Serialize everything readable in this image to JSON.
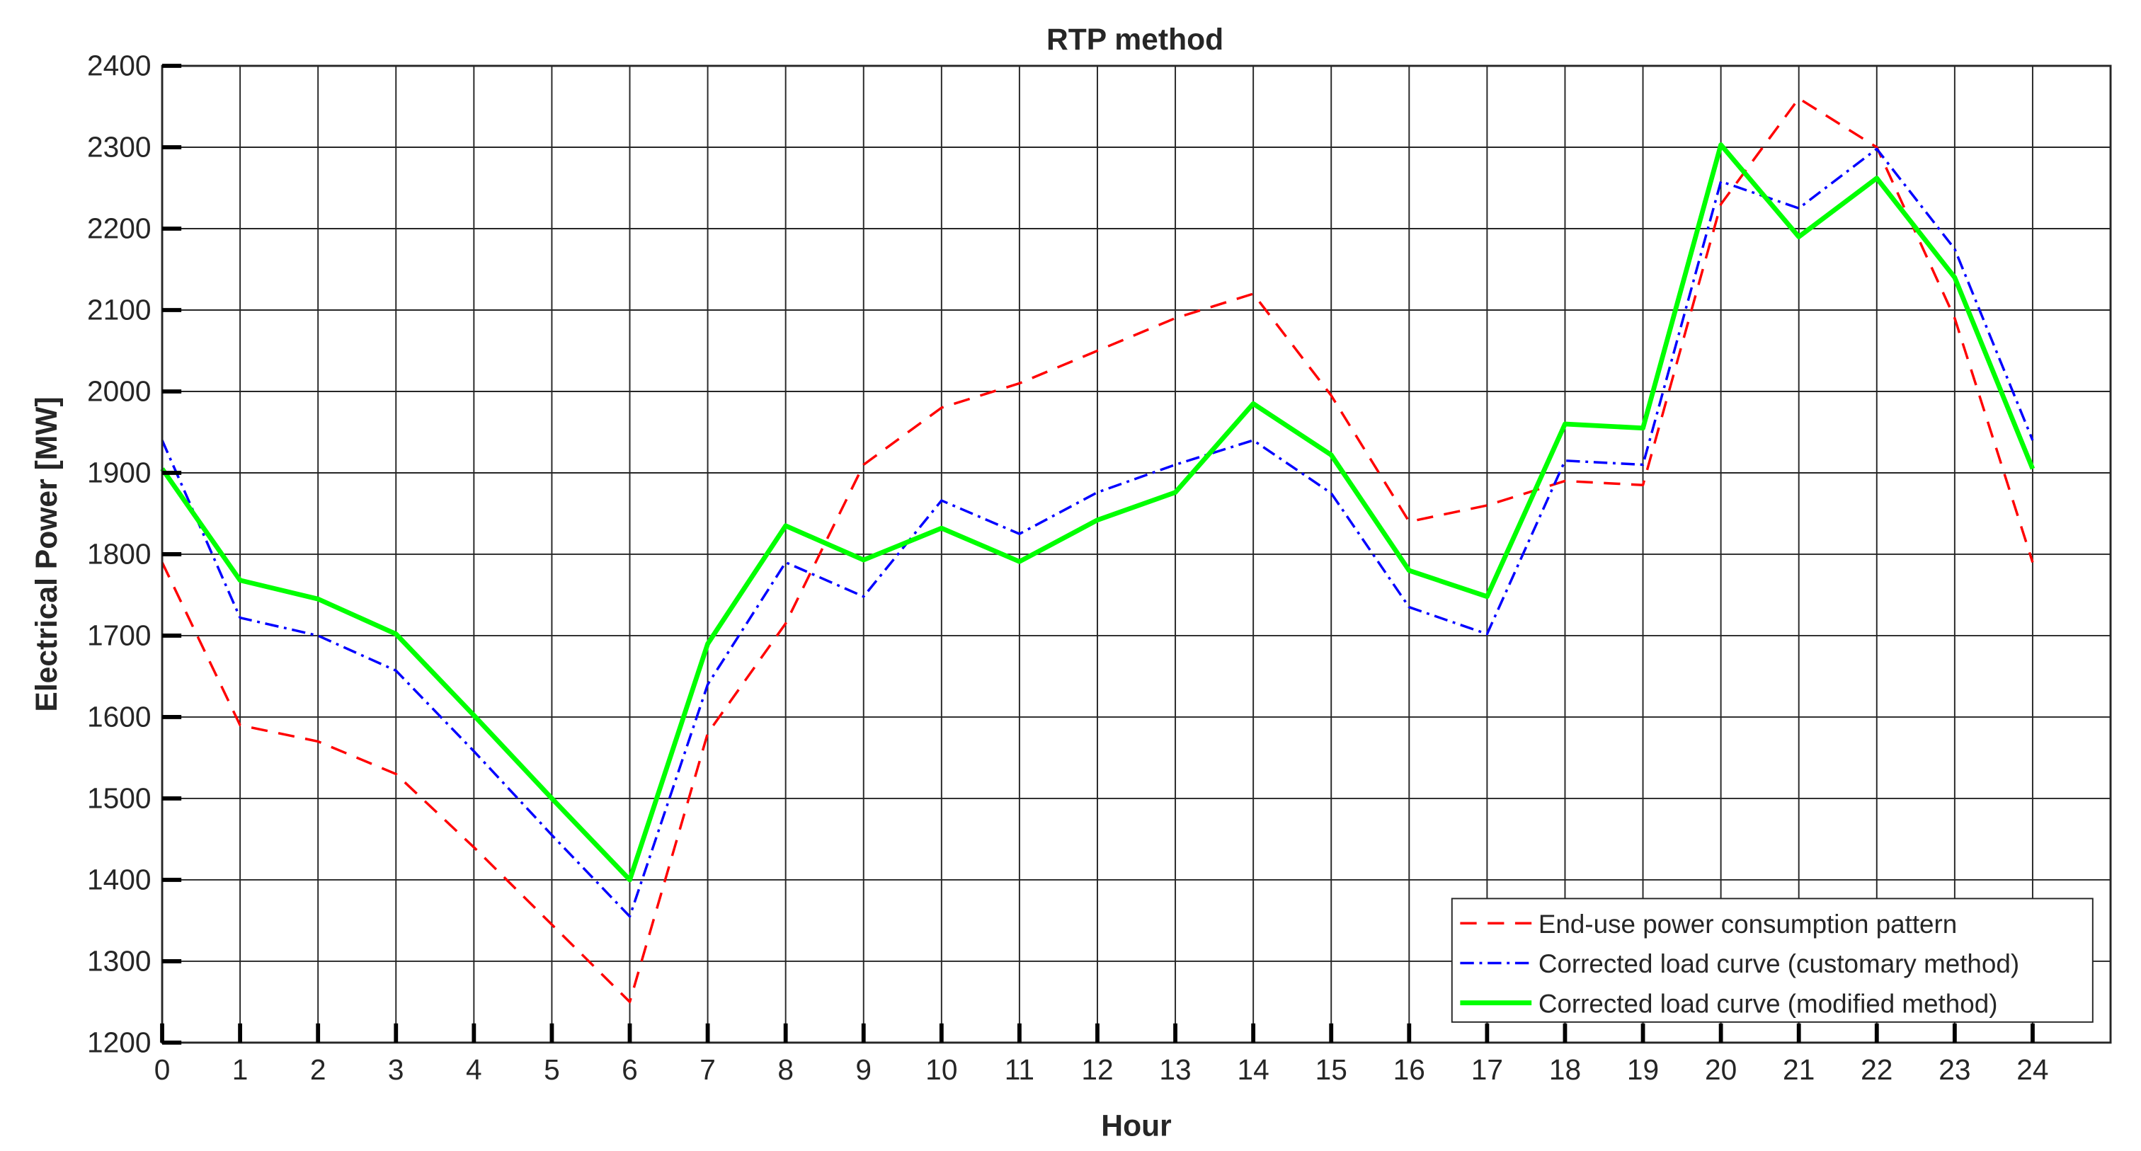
{
  "chart_data": {
    "type": "line",
    "title": "RTP method",
    "xlabel": "Hour",
    "ylabel": "Electrical Power [MW]",
    "xlim": [
      0,
      25
    ],
    "ylim": [
      1200,
      2400
    ],
    "xticks": [
      0,
      1,
      2,
      3,
      4,
      5,
      6,
      7,
      8,
      9,
      10,
      11,
      12,
      13,
      14,
      15,
      16,
      17,
      18,
      19,
      20,
      21,
      22,
      23,
      24
    ],
    "yticks": [
      1200,
      1300,
      1400,
      1500,
      1600,
      1700,
      1800,
      1900,
      2000,
      2100,
      2200,
      2300,
      2400
    ],
    "grid": true,
    "legend_position": "bottom-right",
    "x": [
      0,
      1,
      2,
      3,
      4,
      5,
      6,
      7,
      8,
      9,
      10,
      11,
      12,
      13,
      14,
      15,
      16,
      17,
      18,
      19,
      20,
      21,
      22,
      23,
      24
    ],
    "series": [
      {
        "name": "End-use power consumption pattern",
        "color": "#ff0000",
        "style": "dashed",
        "values": [
          1790,
          1590,
          1570,
          1530,
          1440,
          1345,
          1250,
          1580,
          1715,
          1910,
          1980,
          2010,
          2050,
          2090,
          2120,
          1995,
          1840,
          1860,
          1890,
          1885,
          2230,
          2360,
          2300,
          2090,
          1790
        ]
      },
      {
        "name": "Corrected load curve (customary method)",
        "color": "#0000ff",
        "style": "dashdot",
        "values": [
          1940,
          1722,
          1700,
          1657,
          1558,
          1455,
          1355,
          1640,
          1790,
          1748,
          1866,
          1825,
          1876,
          1910,
          1940,
          1875,
          1735,
          1702,
          1915,
          1910,
          2258,
          2225,
          2298,
          2175,
          1940
        ]
      },
      {
        "name": "Corrected load curve (modified method)",
        "color": "#00ff00",
        "style": "solid",
        "values": [
          1905,
          1768,
          1745,
          1702,
          1602,
          1500,
          1400,
          1690,
          1835,
          1793,
          1832,
          1791,
          1842,
          1876,
          1985,
          1922,
          1780,
          1748,
          1960,
          1955,
          2303,
          2190,
          2262,
          2140,
          1905
        ]
      }
    ]
  }
}
